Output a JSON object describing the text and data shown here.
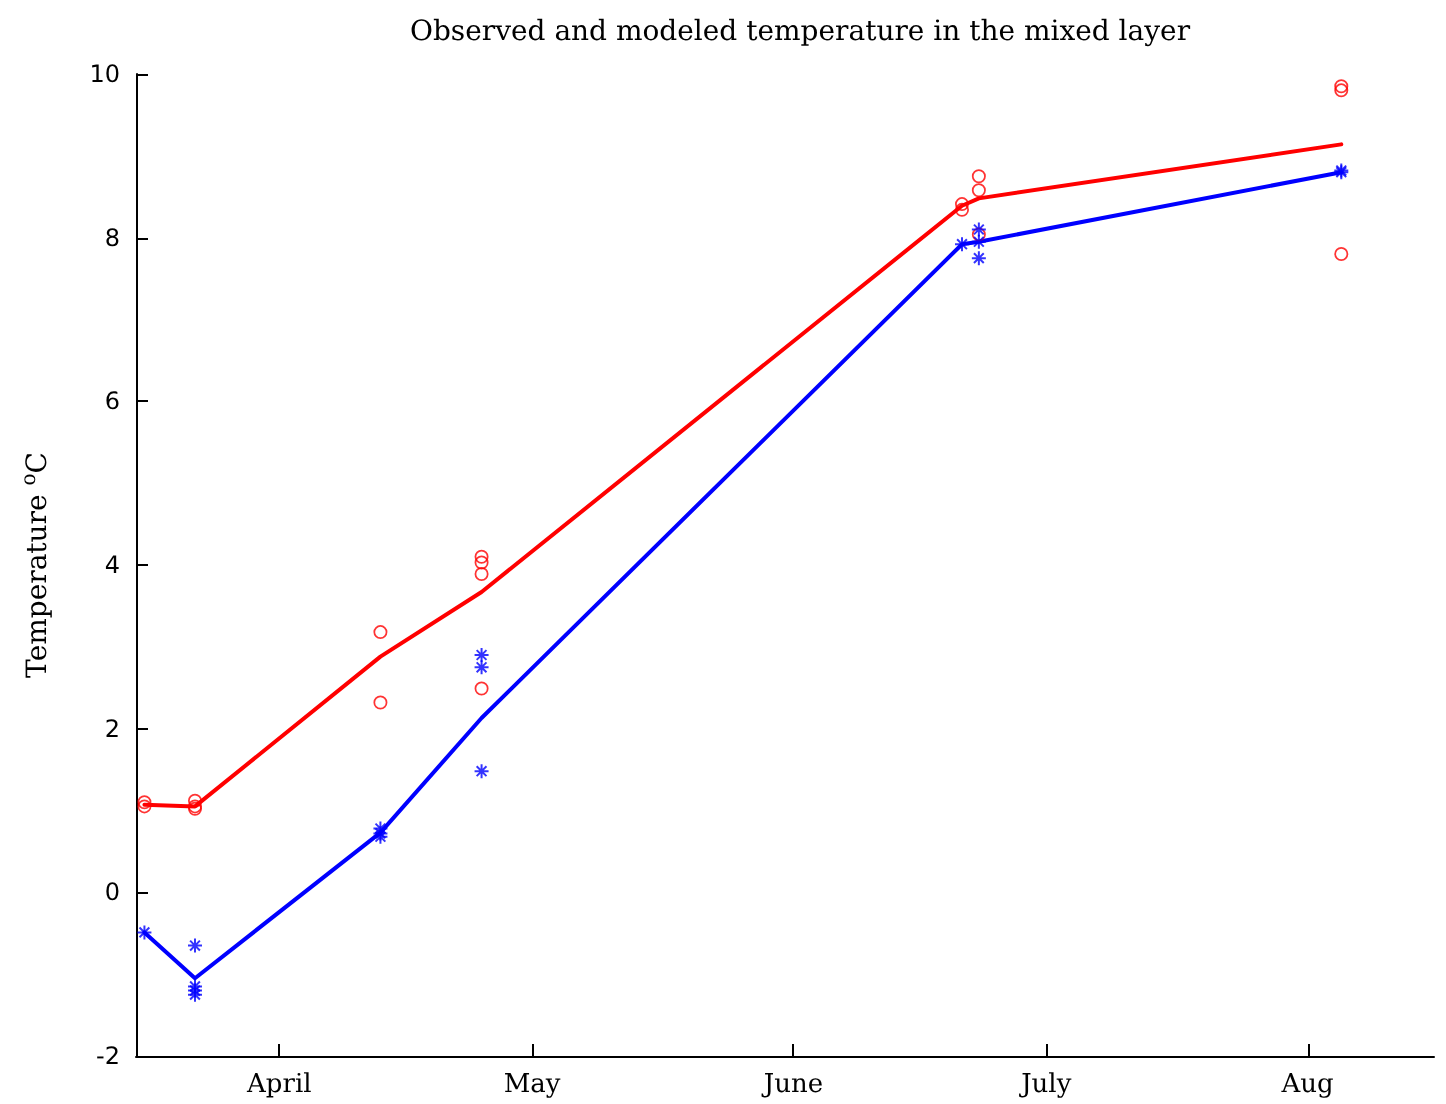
{
  "chart_data": {
    "type": "line",
    "title": "Observed and modeled temperature in the mixed layer",
    "ylabel": "Temperature $^{o}$C",
    "xlim": [
      "--03-15",
      "--08-16"
    ],
    "ylim": [
      -2,
      10
    ],
    "yticks": [
      -2,
      0,
      2,
      4,
      6,
      8,
      10
    ],
    "xticks": [
      {
        "value": "--04-01",
        "label": "April"
      },
      {
        "value": "--05-01",
        "label": "May"
      },
      {
        "value": "--06-01",
        "label": "June"
      },
      {
        "value": "--07-01",
        "label": "July"
      },
      {
        "value": "--08-01",
        "label": "Aug"
      }
    ],
    "grid": false,
    "series": [
      {
        "type": "line",
        "color": "#ff0000",
        "marker": "none",
        "x": [
          "--03-16",
          "--03-22",
          "--04-13",
          "--04-25",
          "--06-21",
          "--06-23",
          "--08-05"
        ],
        "values": [
          1.07,
          1.05,
          2.88,
          3.67,
          8.39,
          8.48,
          9.14
        ]
      },
      {
        "type": "line",
        "color": "#0000ff",
        "marker": "none",
        "x": [
          "--03-16",
          "--03-22",
          "--04-13",
          "--04-25",
          "--06-21",
          "--06-23",
          "--08-05"
        ],
        "values": [
          -0.49,
          -1.05,
          0.73,
          2.13,
          7.92,
          7.95,
          8.8
        ]
      },
      {
        "type": "scatter",
        "color": "#ff0000",
        "marker": "circle",
        "x": [
          "--03-16",
          "--03-16",
          "--03-22",
          "--03-22",
          "--03-22",
          "--04-13",
          "--04-13",
          "--04-25",
          "--04-25",
          "--04-25",
          "--04-25",
          "--06-21",
          "--06-21",
          "--06-23",
          "--06-23",
          "--06-23",
          "--08-05",
          "--08-05",
          "--08-05"
        ],
        "values": [
          1.1,
          1.05,
          1.12,
          1.02,
          1.05,
          3.18,
          2.32,
          4.1,
          4.03,
          3.89,
          2.49,
          8.41,
          8.34,
          8.75,
          8.58,
          8.04,
          9.85,
          9.8,
          7.8
        ]
      },
      {
        "type": "scatter",
        "color": "#0000ff",
        "marker": "cross",
        "x": [
          "--03-16",
          "--03-22",
          "--03-22",
          "--03-22",
          "--03-22",
          "--04-13",
          "--04-13",
          "--04-13",
          "--04-25",
          "--04-25",
          "--04-25",
          "--06-21",
          "--06-23",
          "--06-23",
          "--06-23",
          "--08-05",
          "--08-05"
        ],
        "values": [
          -0.49,
          -0.65,
          -1.15,
          -1.2,
          -1.25,
          0.72,
          0.78,
          0.68,
          2.9,
          2.75,
          1.48,
          7.92,
          8.1,
          7.95,
          7.75,
          8.8,
          8.82
        ]
      }
    ]
  }
}
